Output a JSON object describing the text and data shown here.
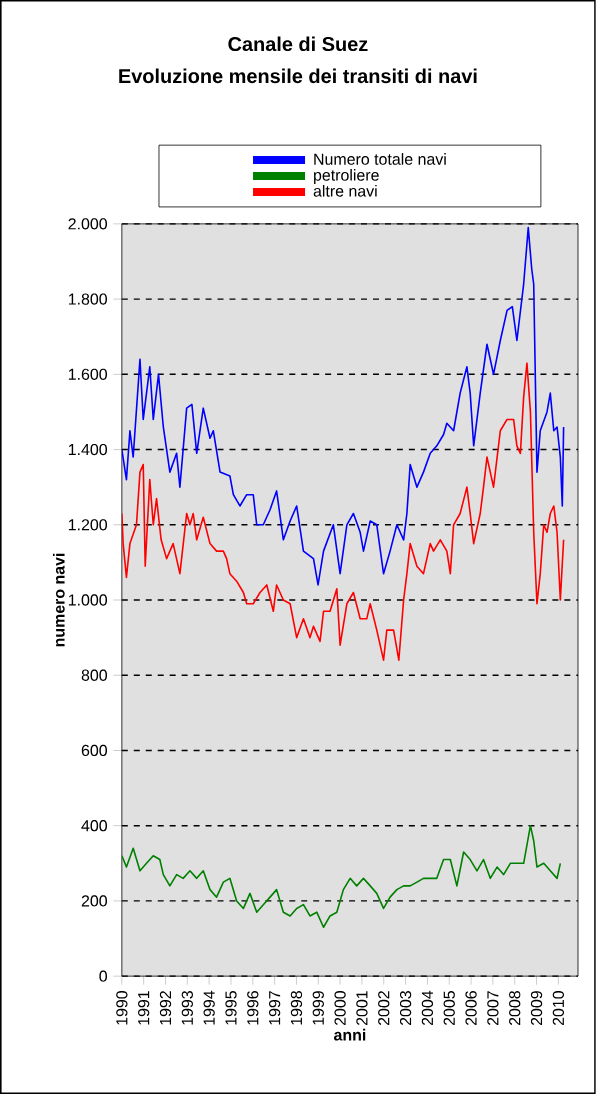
{
  "chart_data": {
    "type": "line",
    "title": "Canale di Suez",
    "subtitle": "Evoluzione mensile dei transiti di navi",
    "xlabel": "anni",
    "ylabel": "numero navi",
    "legend": "top",
    "grid": "y",
    "marker": "none",
    "line_style": "solid",
    "xlim": [
      1990,
      2010.9
    ],
    "xticks": [
      1990,
      1991,
      1992,
      1993,
      1994,
      1995,
      1996,
      1997,
      1998,
      1999,
      2000,
      2001,
      2002,
      2003,
      2004,
      2005,
      2006,
      2007,
      2008,
      2009,
      2010
    ],
    "ylim": [
      0,
      2000
    ],
    "yticks": [
      0,
      200,
      400,
      600,
      800,
      {
        "value": 1000,
        "label": "1.000"
      },
      {
        "value": 1200,
        "label": "1.200"
      },
      {
        "value": 1400,
        "label": "1.400"
      },
      {
        "value": 1600,
        "label": "1.600"
      },
      {
        "value": 1800,
        "label": "1.800"
      },
      {
        "value": 2000,
        "label": "2.000"
      }
    ],
    "series": [
      {
        "name": "Numero totale navi",
        "color": "#0000ff",
        "x": [
          1990.0,
          1990.21,
          1990.37,
          1990.52,
          1990.83,
          1990.98,
          1991.28,
          1991.44,
          1991.68,
          1991.9,
          1992.2,
          1992.51,
          1992.66,
          1992.97,
          1993.21,
          1993.43,
          1993.73,
          1994.04,
          1994.19,
          1994.5,
          1994.95,
          1995.11,
          1995.41,
          1995.72,
          1996.02,
          1996.18,
          1996.48,
          1996.79,
          1997.09,
          1997.4,
          1997.71,
          1998.01,
          1998.32,
          1998.78,
          1998.99,
          1999.24,
          1999.69,
          2000.0,
          2000.31,
          2000.61,
          2000.92,
          2001.07,
          2001.38,
          2001.68,
          2001.99,
          2002.29,
          2002.6,
          2002.91,
          2003.06,
          2003.21,
          2003.52,
          2003.82,
          2004.13,
          2004.43,
          2004.74,
          2004.89,
          2005.2,
          2005.5,
          2005.81,
          2005.96,
          2006.12,
          2006.42,
          2006.73,
          2007.03,
          2007.34,
          2007.65,
          2007.89,
          2008.1,
          2008.41,
          2008.62,
          2008.78,
          2008.87,
          2009.02,
          2009.17,
          2009.48,
          2009.63,
          2009.79,
          2009.94,
          2010.09,
          2010.18,
          2010.24
        ],
        "values": [
          1400,
          1320,
          1450,
          1380,
          1640,
          1480,
          1620,
          1480,
          1600,
          1460,
          1340,
          1390,
          1300,
          1510,
          1520,
          1390,
          1510,
          1430,
          1450,
          1340,
          1330,
          1280,
          1250,
          1280,
          1280,
          1200,
          1200,
          1240,
          1290,
          1160,
          1210,
          1250,
          1130,
          1110,
          1040,
          1130,
          1200,
          1070,
          1200,
          1230,
          1180,
          1130,
          1210,
          1200,
          1070,
          1130,
          1200,
          1160,
          1230,
          1360,
          1300,
          1340,
          1390,
          1410,
          1440,
          1470,
          1450,
          1550,
          1620,
          1550,
          1410,
          1550,
          1680,
          1600,
          1690,
          1770,
          1780,
          1690,
          1840,
          1990,
          1880,
          1840,
          1340,
          1450,
          1500,
          1550,
          1450,
          1460,
          1380,
          1250,
          1460
        ]
      },
      {
        "name": "petroliere",
        "color": "#008000",
        "x": [
          1990.0,
          1990.21,
          1990.52,
          1990.83,
          1991.13,
          1991.44,
          1991.74,
          1991.9,
          1992.2,
          1992.51,
          1992.81,
          1993.12,
          1993.43,
          1993.73,
          1994.04,
          1994.34,
          1994.65,
          1994.95,
          1995.26,
          1995.57,
          1995.87,
          1996.18,
          1996.48,
          1996.79,
          1997.09,
          1997.4,
          1997.71,
          1998.01,
          1998.32,
          1998.62,
          1998.93,
          1999.24,
          1999.54,
          1999.85,
          2000.15,
          2000.46,
          2000.76,
          2001.07,
          2001.38,
          2001.68,
          2001.99,
          2002.29,
          2002.6,
          2002.91,
          2003.21,
          2003.52,
          2003.82,
          2004.13,
          2004.43,
          2004.74,
          2005.05,
          2005.35,
          2005.66,
          2005.96,
          2006.27,
          2006.57,
          2006.88,
          2007.19,
          2007.49,
          2007.8,
          2008.1,
          2008.41,
          2008.72,
          2008.87,
          2009.02,
          2009.33,
          2009.63,
          2009.94,
          2010.09
        ],
        "values": [
          320,
          290,
          340,
          280,
          300,
          320,
          310,
          270,
          240,
          270,
          260,
          280,
          260,
          280,
          230,
          210,
          250,
          260,
          200,
          180,
          220,
          170,
          190,
          210,
          230,
          170,
          160,
          180,
          190,
          160,
          170,
          130,
          160,
          170,
          230,
          260,
          240,
          260,
          240,
          220,
          180,
          210,
          230,
          240,
          240,
          250,
          260,
          260,
          260,
          310,
          310,
          240,
          330,
          310,
          280,
          310,
          260,
          290,
          270,
          300,
          300,
          300,
          400,
          360,
          290,
          300,
          280,
          260,
          300
        ]
      },
      {
        "name": "altre navi",
        "color": "#ff0000",
        "x": [
          1990.0,
          1990.06,
          1990.21,
          1990.37,
          1990.67,
          1990.83,
          1990.98,
          1991.07,
          1991.28,
          1991.44,
          1991.59,
          1991.8,
          1992.05,
          1992.35,
          1992.66,
          1992.97,
          1993.12,
          1993.27,
          1993.43,
          1993.73,
          1994.04,
          1994.34,
          1994.65,
          1994.8,
          1994.95,
          1995.26,
          1995.57,
          1995.72,
          1996.02,
          1996.33,
          1996.64,
          1996.94,
          1997.09,
          1997.4,
          1997.71,
          1998.01,
          1998.32,
          1998.62,
          1998.78,
          1999.08,
          1999.24,
          1999.54,
          1999.85,
          2000.0,
          2000.31,
          2000.61,
          2000.92,
          2001.22,
          2001.38,
          2001.68,
          2001.99,
          2002.14,
          2002.45,
          2002.69,
          2002.91,
          2003.06,
          2003.21,
          2003.52,
          2003.82,
          2004.13,
          2004.28,
          2004.59,
          2004.89,
          2005.05,
          2005.2,
          2005.5,
          2005.81,
          2005.96,
          2006.12,
          2006.42,
          2006.57,
          2006.73,
          2007.03,
          2007.34,
          2007.65,
          2007.95,
          2008.1,
          2008.26,
          2008.41,
          2008.56,
          2008.72,
          2008.87,
          2009.02,
          2009.17,
          2009.33,
          2009.48,
          2009.63,
          2009.79,
          2009.94,
          2010.09,
          2010.24
        ],
        "values": [
          1230,
          1150,
          1060,
          1150,
          1200,
          1340,
          1360,
          1090,
          1320,
          1200,
          1270,
          1160,
          1110,
          1150,
          1070,
          1230,
          1200,
          1230,
          1160,
          1220,
          1150,
          1130,
          1130,
          1110,
          1070,
          1050,
          1020,
          990,
          990,
          1020,
          1040,
          970,
          1040,
          1000,
          990,
          900,
          950,
          900,
          930,
          890,
          970,
          970,
          1030,
          880,
          990,
          1020,
          950,
          950,
          990,
          920,
          840,
          920,
          920,
          840,
          1000,
          1070,
          1150,
          1090,
          1070,
          1150,
          1130,
          1160,
          1130,
          1070,
          1200,
          1230,
          1300,
          1230,
          1150,
          1230,
          1300,
          1380,
          1300,
          1450,
          1480,
          1480,
          1410,
          1390,
          1540,
          1630,
          1500,
          1180,
          990,
          1070,
          1200,
          1180,
          1230,
          1250,
          1180,
          1000,
          1160
        ]
      }
    ]
  }
}
